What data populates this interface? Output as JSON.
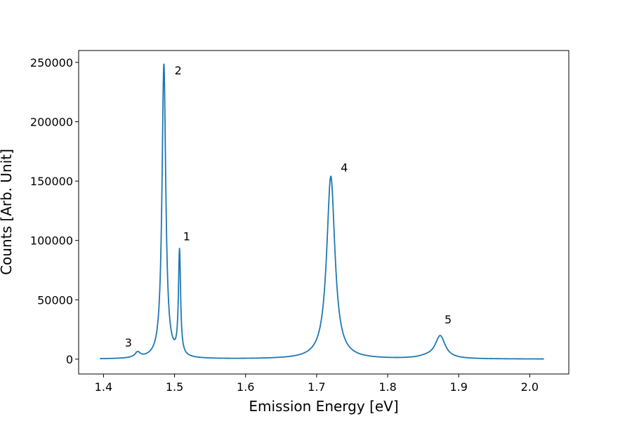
{
  "chart_data": {
    "type": "line",
    "title": "",
    "xlabel": "Emission Energy [eV]",
    "ylabel": "Counts [Arb. Unit]",
    "xlim": [
      1.365,
      2.055
    ],
    "ylim": [
      -12500,
      260000
    ],
    "xticks": [
      1.4,
      1.5,
      1.6,
      1.7,
      1.8,
      1.9,
      2.0
    ],
    "xtick_labels": [
      "1.4",
      "1.5",
      "1.6",
      "1.7",
      "1.8",
      "1.9",
      "2.0"
    ],
    "yticks": [
      0,
      50000,
      100000,
      150000,
      200000,
      250000
    ],
    "ytick_labels": [
      "0",
      "50000",
      "100000",
      "150000",
      "200000",
      "250000"
    ],
    "grid": false,
    "line_color": "#1f77b4",
    "x_range": [
      1.395,
      2.02
    ],
    "peaks": [
      {
        "center": 1.448,
        "height": 4500,
        "width": 0.0045
      },
      {
        "center": 1.485,
        "height": 248000,
        "width": 0.0032
      },
      {
        "center": 1.507,
        "height": 88000,
        "width": 0.0018
      },
      {
        "center": 1.72,
        "height": 154000,
        "width": 0.007
      },
      {
        "center": 1.874,
        "height": 19000,
        "width": 0.0085
      }
    ],
    "shoulder": {
      "center": 1.855,
      "height": 1500,
      "width": 0.015
    },
    "annotations": [
      {
        "text": "2",
        "x": 1.5,
        "y": 240000
      },
      {
        "text": "1",
        "x": 1.512,
        "y": 100000
      },
      {
        "text": "4",
        "x": 1.734,
        "y": 158000
      },
      {
        "text": "3",
        "x": 1.43,
        "y": 10500
      },
      {
        "text": "5",
        "x": 1.88,
        "y": 30000
      }
    ]
  }
}
